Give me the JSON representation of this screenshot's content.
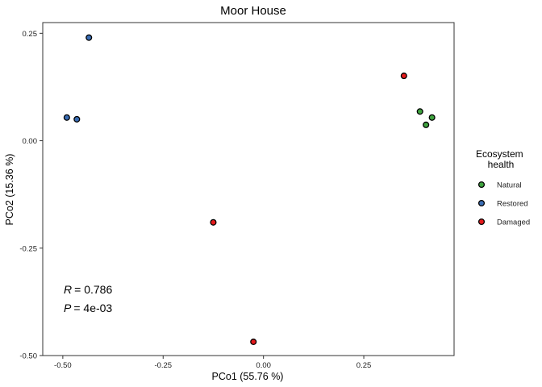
{
  "chart_data": {
    "type": "scatter",
    "title": "Moor House",
    "xlabel": "PCo1 (55.76 %)",
    "ylabel": "PCo2 (15.36 %)",
    "xlim": [
      -0.55,
      0.475
    ],
    "ylim": [
      -0.5,
      0.275
    ],
    "xticks": [
      -0.5,
      -0.25,
      0.0,
      0.25
    ],
    "xtick_labels": [
      "-0.50",
      "-0.25",
      "0.00",
      "0.25"
    ],
    "yticks": [
      -0.5,
      -0.25,
      0.0,
      0.25
    ],
    "ytick_labels": [
      "-0.50",
      "-0.25",
      "0.00",
      "0.25"
    ],
    "grid": false,
    "legend": {
      "title_lines": [
        "Ecosystem",
        "health"
      ],
      "placement": "right"
    },
    "series": [
      {
        "name": "Natural",
        "color": "#3FA33F",
        "points": [
          [
            0.39,
            0.068
          ],
          [
            0.405,
            0.037
          ],
          [
            0.42,
            0.054
          ]
        ]
      },
      {
        "name": "Restored",
        "color": "#3A6DB4",
        "points": [
          [
            -0.435,
            0.24
          ],
          [
            -0.49,
            0.054
          ],
          [
            -0.465,
            0.05
          ]
        ]
      },
      {
        "name": "Damaged",
        "color": "#E41A1C",
        "points": [
          [
            0.35,
            0.151
          ],
          [
            -0.125,
            -0.19
          ],
          [
            -0.025,
            -0.468
          ]
        ]
      }
    ],
    "annotations": [
      {
        "symbol": "R",
        "value": "= 0.786"
      },
      {
        "symbol": "P",
        "value": "= 4e-03"
      }
    ]
  }
}
